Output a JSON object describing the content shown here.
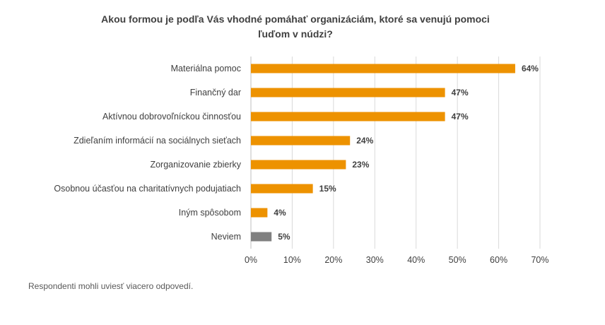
{
  "chart_data": {
    "type": "bar",
    "orientation": "horizontal",
    "title_lines": [
      "Akou formou je podľa Vás vhodné pomáhať organizáciám, ktoré sa venujú pomoci",
      "ľuďom v núdzi?"
    ],
    "categories": [
      "Materiálna pomoc",
      "Finančný dar",
      "Aktívnou dobrovoľníckou činnosťou",
      "Zdieľaním informácií na sociálnych sieťach",
      "Zorganizovanie zbierky",
      "Osobnou účasťou na charitatívnych podujatiach",
      "Iným spôsobom",
      "Neviem"
    ],
    "values": [
      64,
      47,
      47,
      24,
      23,
      15,
      4,
      5
    ],
    "data_labels": [
      "64%",
      "47%",
      "47%",
      "24%",
      "23%",
      "15%",
      "4%",
      "5%"
    ],
    "bar_colors": [
      "#ed9200",
      "#ed9200",
      "#ed9200",
      "#ed9200",
      "#ed9200",
      "#ed9200",
      "#ed9200",
      "#808080"
    ],
    "xlim": [
      0,
      70
    ],
    "x_ticks": [
      0,
      10,
      20,
      30,
      40,
      50,
      60,
      70
    ],
    "x_tick_labels": [
      "0%",
      "10%",
      "20%",
      "30%",
      "40%",
      "50%",
      "60%",
      "70%"
    ],
    "grid": true
  },
  "footnote": "Respondenti mohli uviesť viacero odpovedí."
}
